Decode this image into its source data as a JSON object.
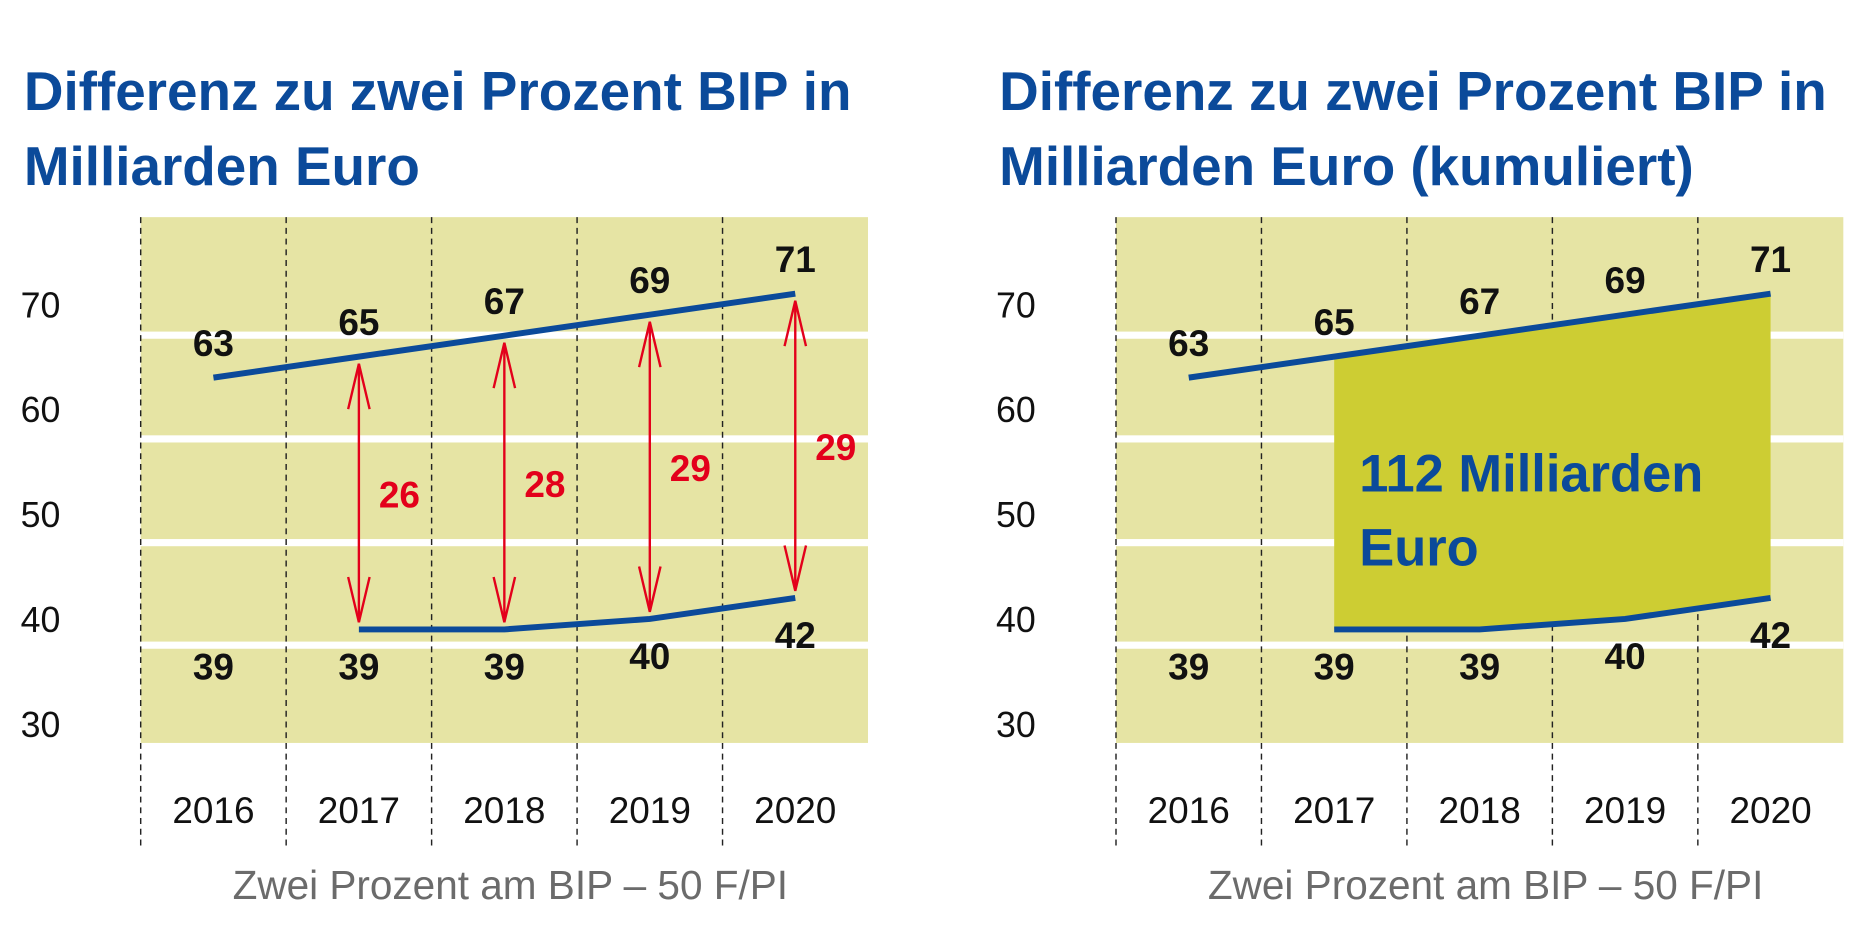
{
  "colors": {
    "title": "#0b4a9a",
    "plot_background": "#e6e4a4",
    "gridband": "#ffffff",
    "line": "#0b4a9a",
    "arrow": "#e3001b",
    "area_fill": "#cdcd33",
    "footer": "#6b6b6b"
  },
  "chart_data": [
    {
      "type": "line",
      "title": "Differenz zu zwei Prozent BIP in Milliarden Euro",
      "title_lines": [
        "Differenz zu zwei Prozent BIP in",
        "Milliarden Euro"
      ],
      "categories": [
        "2016",
        "2017",
        "2018",
        "2019",
        "2020"
      ],
      "yticks": [
        30,
        40,
        50,
        60,
        70
      ],
      "ylim": [
        30,
        70
      ],
      "series": [
        {
          "values": [
            63,
            65,
            67,
            69,
            71
          ]
        },
        {
          "values": [
            39,
            39,
            39,
            40,
            42
          ]
        }
      ],
      "differences": [
        null,
        26,
        28,
        29,
        29
      ],
      "footer": "Zwei Prozent am BIP – 50 F/PI",
      "grid": "vertical dashed, horizontal white bands"
    },
    {
      "type": "area",
      "title": "Differenz zu zwei Prozent BIP in Milliarden Euro (kumuliert)",
      "title_lines": [
        "Differenz zu zwei Prozent BIP in",
        "Milliarden Euro (kumuliert)"
      ],
      "categories": [
        "2016",
        "2017",
        "2018",
        "2019",
        "2020"
      ],
      "yticks": [
        30,
        40,
        50,
        60,
        70
      ],
      "ylim": [
        30,
        70
      ],
      "series": [
        {
          "values": [
            63,
            65,
            67,
            69,
            71
          ]
        },
        {
          "values": [
            39,
            39,
            39,
            40,
            42
          ]
        }
      ],
      "annotation_lines": [
        "112 Milliarden",
        "Euro"
      ],
      "footer": "Zwei Prozent am BIP – 50 F/PI",
      "grid": "vertical dashed, horizontal white bands"
    }
  ]
}
